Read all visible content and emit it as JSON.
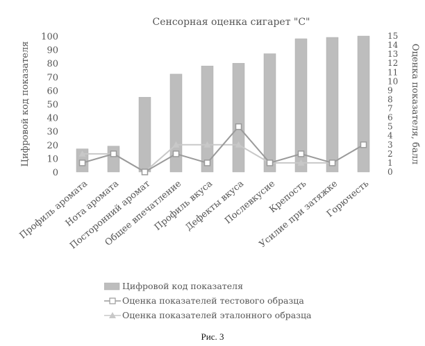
{
  "chart_data": {
    "type": "bar+line",
    "title": "Сенсорная оценка сигарет \"С\"",
    "ylabel": "Цифровой код показателя",
    "y2label": "Оценка показателя, балл",
    "ylim": [
      0,
      100
    ],
    "y2lim": [
      0,
      15
    ],
    "yticks": [
      "0",
      "10",
      "20",
      "30",
      "40",
      "50",
      "60",
      "70",
      "80",
      "90",
      "100"
    ],
    "y2ticks": [
      "0",
      "1",
      "2",
      "3",
      "4",
      "5",
      "6",
      "7",
      "8",
      "9",
      "10",
      "11",
      "12",
      "13",
      "14",
      "15"
    ],
    "categories": [
      "Профиль аромата",
      "Нота аромата",
      "Посторонний аромат",
      "Общее впечатление",
      "Профиль вкуса",
      "Дефекты вкуса",
      "Послевкусие",
      "Крепость",
      "Усилие при затяжке",
      "Горючесть"
    ],
    "series": [
      {
        "name": "Цифровой код показателя",
        "kind": "bar",
        "axis": "left",
        "color": "#bdbdbd",
        "values": [
          17,
          19,
          55,
          72,
          78,
          80,
          87,
          98,
          99,
          100
        ]
      },
      {
        "name": "Оценка показателей тестового образца",
        "kind": "line",
        "axis": "right",
        "color": "#9a9a9a",
        "marker": "square",
        "values": [
          1,
          2,
          0,
          2,
          1,
          5,
          1,
          2,
          1,
          3
        ]
      },
      {
        "name": "Оценка показателей эталонного образца",
        "kind": "line",
        "axis": "right",
        "color": "#c8c8c8",
        "marker": "triangle",
        "values": [
          2,
          2,
          0,
          3,
          3,
          3,
          1,
          1,
          1,
          3
        ]
      }
    ],
    "grid": false,
    "legend_position": "bottom"
  },
  "caption": "Рис. 3"
}
